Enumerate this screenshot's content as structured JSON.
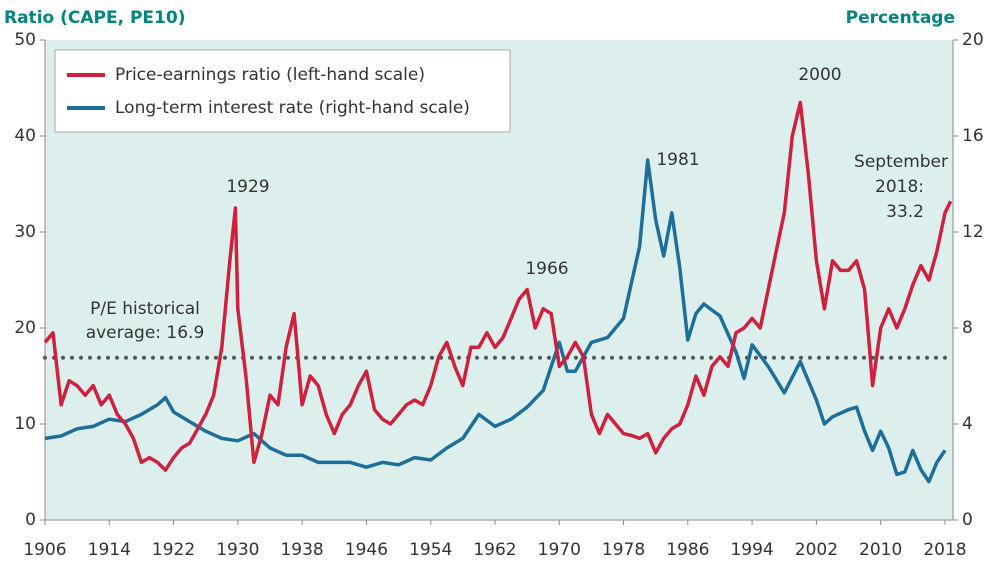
{
  "chart_data": {
    "type": "line",
    "y_axis_title": "Ratio (CAPE, PE10)",
    "y2_axis_title": "Percentage",
    "xlim": [
      1906,
      2019
    ],
    "xticks": [
      1906,
      1914,
      1922,
      1930,
      1938,
      1946,
      1954,
      1962,
      1970,
      1978,
      1986,
      1994,
      2002,
      2010,
      2018
    ],
    "ylim": [
      0,
      50
    ],
    "yticks": [
      0,
      10,
      20,
      30,
      40,
      50
    ],
    "y2lim": [
      0,
      20
    ],
    "y2ticks": [
      0,
      4,
      8,
      12,
      16,
      20
    ],
    "legend": "upper left",
    "series": [
      {
        "name": "Price-earnings ratio (left-hand scale)",
        "color": "#d0203f",
        "x": [
          1906,
          1907,
          1908,
          1909,
          1910,
          1911,
          1912,
          1913,
          1914,
          1915,
          1916,
          1917,
          1918,
          1919,
          1920,
          1921,
          1922,
          1923,
          1924,
          1925,
          1926,
          1927,
          1928,
          1929,
          1929.7,
          1930,
          1931,
          1932,
          1933,
          1934,
          1935,
          1936,
          1937,
          1938,
          1939,
          1940,
          1941,
          1942,
          1943,
          1944,
          1945,
          1946,
          1947,
          1948,
          1949,
          1950,
          1951,
          1952,
          1953,
          1954,
          1955,
          1956,
          1957,
          1958,
          1959,
          1960,
          1961,
          1962,
          1963,
          1964,
          1965,
          1966,
          1967,
          1968,
          1969,
          1970,
          1971,
          1972,
          1973,
          1974,
          1975,
          1976,
          1977,
          1978,
          1979,
          1980,
          1981,
          1982,
          1983,
          1984,
          1985,
          1986,
          1987,
          1988,
          1989,
          1990,
          1991,
          1992,
          1993,
          1994,
          1995,
          1996,
          1997,
          1998,
          1999,
          2000,
          2001,
          2002,
          2003,
          2004,
          2005,
          2006,
          2007,
          2008,
          2009,
          2010,
          2011,
          2012,
          2013,
          2014,
          2015,
          2016,
          2017,
          2018,
          2018.7
        ],
        "values": [
          18.5,
          19.5,
          12,
          14.5,
          14,
          13,
          14,
          12,
          13,
          11,
          10,
          8.5,
          6,
          6.5,
          6,
          5.2,
          6.5,
          7.5,
          8,
          9.5,
          11,
          13,
          18,
          27,
          32.5,
          22,
          15,
          6,
          9,
          13,
          12,
          18,
          21.5,
          12,
          15,
          14,
          11,
          9,
          11,
          12,
          14,
          15.5,
          11.5,
          10.5,
          10,
          11,
          12,
          12.5,
          12,
          14,
          17,
          18.5,
          16,
          14,
          18,
          18,
          19.5,
          18,
          19,
          21,
          23,
          24,
          20,
          22,
          21.5,
          16,
          17,
          18.5,
          17,
          11,
          9,
          11,
          10,
          9,
          8.8,
          8.5,
          9,
          7,
          8.5,
          9.5,
          10,
          12,
          15,
          13,
          16,
          17,
          16,
          19.5,
          20,
          21,
          20,
          24,
          28,
          32,
          40,
          43.5,
          36,
          27,
          22,
          27,
          26,
          26,
          27,
          24,
          14,
          20,
          22,
          20,
          22,
          24.5,
          26.5,
          25,
          28,
          32,
          33.2
        ]
      },
      {
        "name": "Long-term interest rate (right-hand scale)",
        "color": "#1d6e98",
        "axis": "y2",
        "x": [
          1906,
          1908,
          1910,
          1912,
          1914,
          1916,
          1918,
          1920,
          1921,
          1922,
          1924,
          1926,
          1928,
          1930,
          1932,
          1934,
          1936,
          1938,
          1940,
          1942,
          1944,
          1946,
          1948,
          1950,
          1952,
          1954,
          1956,
          1958,
          1960,
          1962,
          1964,
          1966,
          1968,
          1970,
          1971,
          1972,
          1974,
          1976,
          1978,
          1980,
          1981,
          1982,
          1983,
          1984,
          1985,
          1986,
          1987,
          1988,
          1990,
          1992,
          1993,
          1994,
          1996,
          1998,
          2000,
          2002,
          2003,
          2004,
          2006,
          2007,
          2008,
          2009,
          2010,
          2011,
          2012,
          2013,
          2014,
          2015,
          2016,
          2017,
          2018
        ],
        "values": [
          3.4,
          3.5,
          3.8,
          3.9,
          4.2,
          4.1,
          4.4,
          4.8,
          5.1,
          4.5,
          4.1,
          3.7,
          3.4,
          3.3,
          3.6,
          3.0,
          2.7,
          2.7,
          2.4,
          2.4,
          2.4,
          2.2,
          2.4,
          2.3,
          2.6,
          2.5,
          3.0,
          3.4,
          4.4,
          3.9,
          4.2,
          4.7,
          5.4,
          7.4,
          6.2,
          6.2,
          7.4,
          7.6,
          8.4,
          11.4,
          15.0,
          12.5,
          11,
          12.8,
          10.5,
          7.5,
          8.6,
          9.0,
          8.5,
          7.0,
          5.9,
          7.3,
          6.4,
          5.3,
          6.6,
          5.0,
          4.0,
          4.3,
          4.6,
          4.7,
          3.7,
          2.9,
          3.7,
          3.0,
          1.9,
          2.0,
          2.9,
          2.1,
          1.6,
          2.4,
          2.9
        ]
      }
    ],
    "reference_line": {
      "value": 16.9,
      "color": "#555555",
      "label": [
        "P/E historical",
        "average: 16.9"
      ]
    },
    "annotations": [
      {
        "text": "1929",
        "color": "#d0203f"
      },
      {
        "text": "1966",
        "color": "#d0203f"
      },
      {
        "text": "1981",
        "color": "#1d6e98"
      },
      {
        "text": "2000",
        "color": "#d0203f"
      },
      {
        "text": [
          "September",
          "2018:",
          "33.2"
        ],
        "color": "#d0203f"
      }
    ]
  }
}
